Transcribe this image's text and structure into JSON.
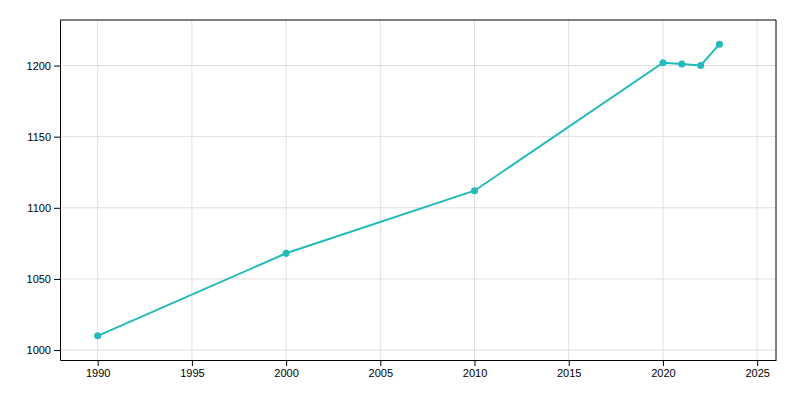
{
  "chart_data": {
    "type": "line",
    "x": [
      1990,
      2000,
      2010,
      2020,
      2021,
      2022,
      2023
    ],
    "values": [
      1010,
      1068,
      1112,
      1202,
      1201,
      1200,
      1215
    ],
    "color": "#22BBBB",
    "marker": "circle",
    "xlim": [
      1988,
      2026
    ],
    "ylim": [
      993,
      1232
    ],
    "xticks": [
      1990,
      1995,
      2000,
      2005,
      2010,
      2015,
      2020,
      2025
    ],
    "yticks": [
      1000,
      1050,
      1100,
      1150,
      1200
    ],
    "grid": true
  }
}
